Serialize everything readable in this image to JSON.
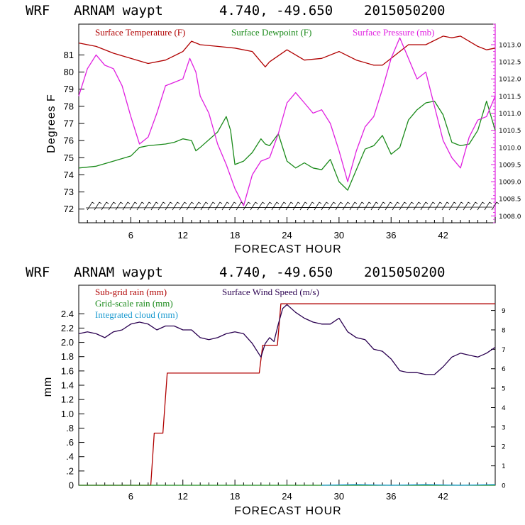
{
  "chart_data": [
    {
      "type": "line",
      "title": {
        "model": "WRF",
        "station": "ARNAM waypt",
        "coords": "4.740, -49.650",
        "init": "2015050200"
      },
      "xlabel": "FORECAST HOUR",
      "ylabel": "Degrees F",
      "xlim": [
        0,
        48
      ],
      "xticks": [
        6,
        12,
        18,
        24,
        30,
        36,
        42
      ],
      "ylim_left": [
        71.2,
        82.8
      ],
      "yticks_left": [
        72,
        73,
        74,
        75,
        76,
        77,
        78,
        79,
        80,
        81
      ],
      "ylim_right": [
        1007.8,
        1013.6
      ],
      "yticks_right": [
        "1008.0",
        "1008.5",
        "1009.0",
        "1009.5",
        "1010.0",
        "1010.5",
        "1011.0",
        "1011.5",
        "1012.0",
        "1012.5",
        "1013.0"
      ],
      "legend": [
        "Surface Temperature (F)",
        "Surface Dewpoint (F)",
        "Surface Pressure (mb)"
      ],
      "series": [
        {
          "name": "Surface Temperature (F)",
          "color": "#b00000",
          "axis": "left",
          "x": [
            0,
            2,
            4,
            6,
            8,
            10,
            12,
            13,
            14,
            16,
            18,
            20,
            21,
            21.5,
            22,
            24,
            26,
            28,
            30,
            32,
            34,
            35,
            36,
            38,
            40,
            42,
            43,
            44,
            46,
            47,
            48
          ],
          "y": [
            81.7,
            81.5,
            81.1,
            80.8,
            80.5,
            80.7,
            81.2,
            81.8,
            81.6,
            81.5,
            81.4,
            81.2,
            80.6,
            80.3,
            80.6,
            81.3,
            80.7,
            80.8,
            81.2,
            80.7,
            80.4,
            80.4,
            80.8,
            81.6,
            81.6,
            82.1,
            82.0,
            82.1,
            81.5,
            81.3,
            81.4
          ]
        },
        {
          "name": "Surface Dewpoint (F)",
          "color": "#1a8a1a",
          "axis": "left",
          "x": [
            0,
            2,
            4,
            6,
            7,
            8,
            10,
            11,
            12,
            13,
            13.5,
            14,
            16,
            17,
            17.5,
            18,
            19,
            20,
            21,
            21.5,
            22,
            23,
            24,
            25,
            26,
            27,
            28,
            29,
            30,
            31,
            32,
            33,
            34,
            35,
            36,
            37,
            38,
            39,
            40,
            41,
            42,
            43,
            44,
            45,
            46,
            47,
            48
          ],
          "y": [
            74.4,
            74.5,
            74.8,
            75.1,
            75.6,
            75.7,
            75.8,
            75.9,
            76.1,
            76.0,
            75.4,
            75.6,
            76.5,
            77.4,
            76.6,
            74.6,
            74.8,
            75.3,
            76.1,
            75.8,
            75.7,
            76.4,
            74.8,
            74.4,
            74.7,
            74.4,
            74.3,
            74.9,
            73.6,
            73.1,
            74.3,
            75.5,
            75.7,
            76.3,
            75.2,
            75.6,
            77.2,
            77.8,
            78.2,
            78.3,
            77.5,
            75.9,
            75.7,
            75.8,
            76.6,
            78.3,
            76.6
          ]
        },
        {
          "name": "Surface Pressure (mb)",
          "color": "#e020e0",
          "axis": "right",
          "x": [
            0,
            1,
            2,
            3,
            4,
            5,
            6,
            7,
            8,
            9,
            10,
            11,
            12,
            12.8,
            13.5,
            14,
            15,
            16,
            17,
            18,
            19,
            20,
            21,
            22,
            23,
            24,
            25,
            26,
            27,
            28,
            29,
            30,
            31,
            32,
            33,
            34,
            35,
            36,
            37,
            38,
            39,
            40,
            41,
            42,
            43,
            44,
            45,
            46,
            47,
            48
          ],
          "y": [
            1011.5,
            1012.3,
            1012.7,
            1012.4,
            1012.3,
            1011.8,
            1010.9,
            1010.1,
            1010.3,
            1011.0,
            1011.8,
            1011.9,
            1012.0,
            1012.6,
            1012.2,
            1011.5,
            1011.0,
            1010.1,
            1009.5,
            1008.8,
            1008.3,
            1009.2,
            1009.6,
            1009.7,
            1010.4,
            1011.3,
            1011.6,
            1011.3,
            1011.0,
            1011.1,
            1010.7,
            1009.9,
            1009.0,
            1009.9,
            1010.6,
            1010.9,
            1011.7,
            1012.6,
            1013.2,
            1012.6,
            1012.0,
            1012.2,
            1011.2,
            1010.2,
            1009.7,
            1009.4,
            1010.3,
            1010.8,
            1010.9,
            1011.5
          ]
        }
      ],
      "annotation": "Wind barbs along the base of the plot"
    },
    {
      "type": "line",
      "title": {
        "model": "WRF",
        "station": "ARNAM waypt",
        "coords": "4.740, -49.650",
        "init": "2015050200"
      },
      "xlabel": "FORECAST HOUR",
      "ylabel": "mm",
      "xlim": [
        0,
        48
      ],
      "xticks": [
        6,
        12,
        18,
        24,
        30,
        36,
        42
      ],
      "ylim_left": [
        0,
        2.8
      ],
      "yticks_left": [
        "0",
        ".2",
        ".4",
        ".6",
        ".8",
        "1.0",
        "1.2",
        "1.4",
        "1.6",
        "1.8",
        "2.0",
        "2.2",
        "2.4"
      ],
      "ylim_right": [
        0,
        10.3
      ],
      "yticks_right": [
        "0",
        "1",
        "2",
        "3",
        "4",
        "5",
        "6",
        "7",
        "8",
        "9"
      ],
      "legend": [
        "Sub-grid rain (mm)",
        "Grid-scale rain (mm)",
        "Integrated cloud (mm)",
        "Surface Wind Speed (m/s)"
      ],
      "series": [
        {
          "name": "Sub-grid rain (mm)",
          "color": "#b00000",
          "axis": "left",
          "step": true,
          "x": [
            0,
            8.3,
            8.7,
            9.7,
            10.2,
            20.8,
            21.2,
            22.9,
            23.3,
            48
          ],
          "y": [
            0,
            0,
            0.73,
            0.73,
            1.57,
            1.57,
            1.96,
            1.96,
            2.54,
            2.54
          ]
        },
        {
          "name": "Grid-scale rain (mm)",
          "color": "#1a8a1a",
          "axis": "left",
          "x": [
            0,
            48
          ],
          "y": [
            0,
            0
          ]
        },
        {
          "name": "Integrated cloud (mm)",
          "color": "#1a9ad0",
          "axis": "left",
          "x": [
            28,
            32,
            36,
            40,
            44,
            48
          ],
          "y": [
            0,
            0.01,
            0,
            0.01,
            0,
            0.01
          ]
        },
        {
          "name": "Surface Wind Speed (m/s)",
          "color": "#2a0050",
          "axis": "right",
          "x": [
            0,
            1,
            2,
            3,
            4,
            5,
            6,
            7,
            8,
            9,
            10,
            11,
            12,
            13,
            14,
            15,
            16,
            17,
            18,
            19,
            20,
            21,
            21.5,
            22,
            22.5,
            23,
            23.5,
            24,
            25,
            26,
            27,
            28,
            29,
            30,
            31,
            32,
            33,
            34,
            35,
            36,
            37,
            38,
            39,
            40,
            41,
            42,
            43,
            44,
            45,
            46,
            47,
            48
          ],
          "y": [
            7.8,
            7.9,
            7.8,
            7.6,
            7.9,
            8.0,
            8.3,
            8.4,
            8.3,
            8.0,
            8.2,
            8.2,
            8.0,
            8.0,
            7.6,
            7.5,
            7.6,
            7.8,
            7.9,
            7.8,
            7.3,
            6.6,
            7.3,
            7.6,
            7.4,
            8.3,
            9.1,
            9.3,
            8.9,
            8.6,
            8.4,
            8.3,
            8.3,
            8.6,
            7.9,
            7.6,
            7.5,
            7.0,
            6.9,
            6.5,
            5.9,
            5.8,
            5.8,
            5.7,
            5.7,
            6.1,
            6.6,
            6.8,
            6.7,
            6.6,
            6.8,
            7.1
          ]
        }
      ]
    }
  ]
}
